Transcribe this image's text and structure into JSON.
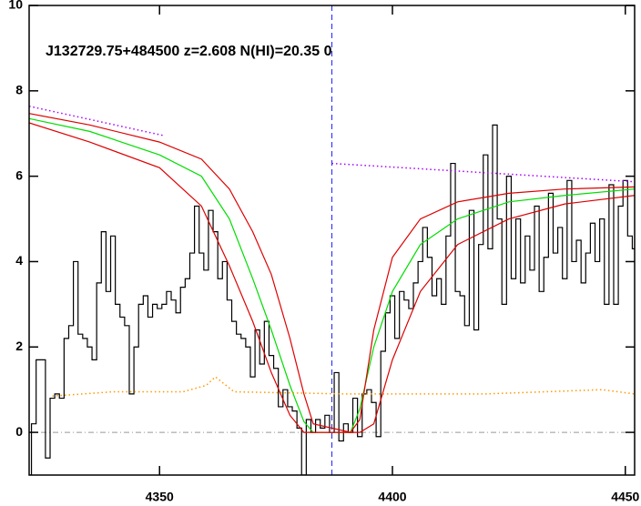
{
  "chart_data": {
    "type": "line",
    "title": "J132729.75+484500 z=2.608 N(HI)=20.35 0",
    "xlim": [
      4322,
      4452
    ],
    "ylim": [
      -1,
      10
    ],
    "xticks": [
      4350,
      4400,
      4450
    ],
    "yticks": [
      0,
      2,
      4,
      6,
      8,
      10
    ],
    "vline": 4387,
    "hline": 0,
    "series": [
      {
        "color": "#000000",
        "style": "step",
        "x": [
          4322,
          4323,
          4324,
          4325,
          4326,
          4327,
          4328,
          4329,
          4330,
          4331,
          4332,
          4333,
          4334,
          4335,
          4336,
          4337,
          4338,
          4339,
          4340,
          4341,
          4342,
          4343,
          4344,
          4345,
          4346,
          4347,
          4348,
          4349,
          4350,
          4351,
          4352,
          4353,
          4354,
          4355,
          4356,
          4357,
          4358,
          4359,
          4360,
          4361,
          4362,
          4363,
          4364,
          4365,
          4366,
          4367,
          4368,
          4369,
          4370,
          4371,
          4372,
          4373,
          4374,
          4375,
          4376,
          4377,
          4378,
          4379,
          4380,
          4381,
          4382,
          4383,
          4384,
          4385,
          4386,
          4387,
          4388,
          4389,
          4390,
          4391,
          4392,
          4393,
          4394,
          4395,
          4396,
          4397,
          4398,
          4399,
          4400,
          4401,
          4402,
          4403,
          4404,
          4405,
          4406,
          4407,
          4408,
          4409,
          4410,
          4411,
          4412,
          4413,
          4414,
          4415,
          4416,
          4417,
          4418,
          4419,
          4420,
          4421,
          4422,
          4423,
          4424,
          4425,
          4426,
          4427,
          4428,
          4429,
          4430,
          4431,
          4432,
          4433,
          4434,
          4435,
          4436,
          4437,
          4438,
          4439,
          4440,
          4441,
          4442,
          4443,
          4444,
          4445,
          4446,
          4447,
          4448,
          4449,
          4450,
          4451,
          4452
        ],
        "values": [
          -1.0,
          0.2,
          1.7,
          1.7,
          -0.6,
          0.8,
          0.9,
          0.8,
          2.2,
          2.5,
          4.0,
          2.3,
          2.2,
          2.0,
          1.7,
          3.5,
          4.7,
          3.3,
          4.6,
          3.0,
          2.7,
          2.5,
          0.9,
          2.0,
          3.0,
          3.2,
          2.7,
          3.0,
          2.9,
          3.0,
          3.3,
          3.1,
          2.8,
          3.4,
          3.6,
          4.2,
          5.3,
          4.2,
          3.8,
          5.2,
          4.7,
          3.6,
          4.0,
          3.1,
          2.6,
          2.3,
          2.2,
          2.0,
          1.3,
          2.4,
          1.6,
          2.6,
          1.8,
          1.5,
          0.6,
          1.0,
          0.6,
          0.5,
          0.1,
          -1.0,
          0.3,
          0.0,
          0.3,
          0.1,
          0.4,
          0.0,
          1.4,
          -0.2,
          0.2,
          0.0,
          0.8,
          -0.1,
          0.9,
          1.0,
          0.7,
          -0.1,
          1.9,
          2.8,
          3.2,
          2.2,
          3.3,
          3.1,
          2.9,
          3.5,
          4.0,
          4.8,
          4.1,
          3.2,
          3.6,
          3.0,
          4.6,
          6.3,
          3.3,
          3.2,
          2.5,
          5.2,
          2.4,
          4.4,
          6.5,
          4.3,
          7.2,
          5.0,
          3.0,
          6.0,
          3.6,
          5.0,
          3.5,
          4.6,
          3.8,
          5.3,
          3.3,
          4.1,
          5.6,
          4.2,
          4.8,
          3.6,
          5.9,
          4.0,
          4.5,
          3.5,
          4.2,
          4.9,
          4.0,
          5.0,
          3.0,
          5.8,
          3.0,
          5.3,
          5.9,
          4.6,
          4.3
        ]
      },
      {
        "color": "#00dd00",
        "style": "solid",
        "x": [
          4322,
          4335,
          4350,
          4359,
          4365,
          4370,
          4374,
          4378,
          4381,
          4383,
          4391,
          4393,
          4396,
          4400,
          4406,
          4414,
          4425,
          4437,
          4452
        ],
        "values": [
          7.35,
          7.05,
          6.5,
          6.0,
          5.0,
          3.6,
          2.4,
          1.1,
          0.25,
          0.0,
          0.0,
          0.55,
          2.0,
          3.3,
          4.4,
          5.0,
          5.4,
          5.55,
          5.7
        ]
      },
      {
        "color": "#dd0000",
        "style": "solid",
        "x": [
          4322,
          4335,
          4350,
          4359,
          4365,
          4370,
          4374,
          4378,
          4381,
          4383,
          4391,
          4393,
          4396,
          4400,
          4406,
          4414,
          4425,
          4437,
          4452
        ],
        "values": [
          7.47,
          7.2,
          6.8,
          6.4,
          5.7,
          4.7,
          3.7,
          2.2,
          0.9,
          0.2,
          0.0,
          0.3,
          2.4,
          4.1,
          5.0,
          5.4,
          5.6,
          5.7,
          5.75
        ]
      },
      {
        "color": "#dd0000",
        "style": "solid",
        "x": [
          4322,
          4335,
          4350,
          4359,
          4365,
          4370,
          4374,
          4378,
          4381,
          4383,
          4391,
          4393,
          4396,
          4400,
          4406,
          4414,
          4425,
          4437,
          4452
        ],
        "values": [
          7.25,
          6.8,
          6.2,
          5.3,
          3.9,
          2.6,
          1.4,
          0.4,
          0.0,
          0.0,
          0.0,
          0.0,
          0.2,
          1.7,
          3.3,
          4.4,
          5.0,
          5.35,
          5.55
        ]
      },
      {
        "color": "#aa00ff",
        "style": "dotted",
        "x": [
          4322,
          4351,
          4354,
          4387,
          4452
        ],
        "values": [
          7.64,
          6.95,
          null,
          6.3,
          5.87
        ]
      },
      {
        "color": "#ff9900",
        "style": "dotted",
        "x": [
          4327,
          4340,
          4355,
          4360,
          4362,
          4366,
          4390,
          4420,
          4445,
          4452
        ],
        "values": [
          0.85,
          0.95,
          0.95,
          1.1,
          1.3,
          0.95,
          0.9,
          0.9,
          1.0,
          0.9
        ]
      }
    ]
  }
}
